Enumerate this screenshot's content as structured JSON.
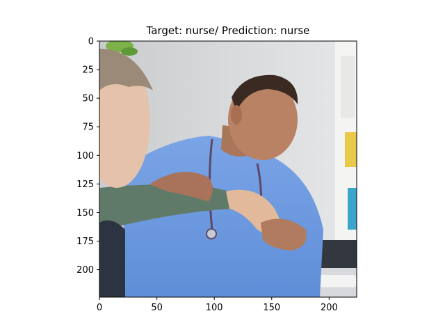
{
  "chart_data": {
    "type": "image",
    "title": "Target: nurse/ Prediction: nurse",
    "xlabel": "",
    "ylabel": "",
    "xlim": [
      0,
      224
    ],
    "ylim": [
      224,
      0
    ],
    "x_ticks": [
      0,
      50,
      100,
      150,
      200
    ],
    "y_ticks": [
      0,
      25,
      50,
      75,
      100,
      125,
      150,
      175,
      200
    ],
    "grid": false,
    "image_description": "Young man in blue scrubs with a stethoscope taking the pulse of an older patient's forearm in a clinic"
  }
}
